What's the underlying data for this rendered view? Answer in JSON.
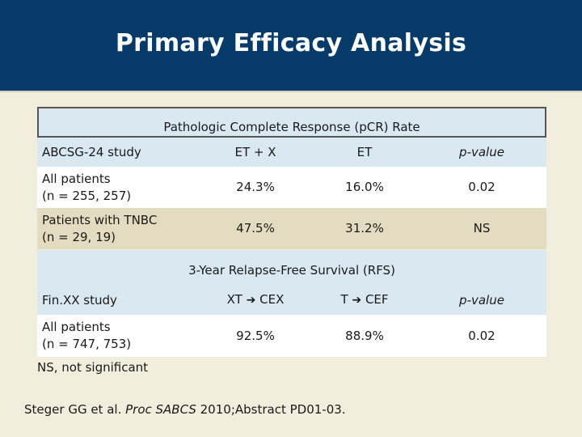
{
  "title": "Primary Efficacy Analysis",
  "pcr": {
    "section_label": "Pathologic Complete Response (pCR) Rate",
    "headers": [
      "ABCSG-24 study",
      "ET + X",
      "ET",
      "p-value"
    ],
    "rows": [
      {
        "label_line1": "All patients",
        "label_line2": "(n = 255, 257)",
        "et_x": "24.3%",
        "et": "16.0%",
        "p": "0.02"
      },
      {
        "label_line1": "Patients with TNBC",
        "label_line2": "(n = 29, 19)",
        "et_x": "47.5%",
        "et": "31.2%",
        "p": "NS"
      }
    ]
  },
  "rfs": {
    "section_label": "3-Year Relapse-Free Survival (RFS)",
    "study": "Fin.XX study",
    "col_a_left": "XT",
    "col_a_right": "CEX",
    "col_b_left": "T",
    "col_b_right": "CEF",
    "p_header": "p-value",
    "rows": [
      {
        "label_line1": "All patients",
        "label_line2": "(n = 747, 753)",
        "xt": "92.5%",
        "t": "88.9%",
        "p": "0.02"
      }
    ]
  },
  "footnote": "NS, not significant",
  "citation": {
    "prefix": "Steger GG et al. ",
    "journal": "Proc SABCS",
    "suffix": " 2010;Abstract PD01-03."
  },
  "icons": {
    "arrow": "right-arrow-icon"
  }
}
